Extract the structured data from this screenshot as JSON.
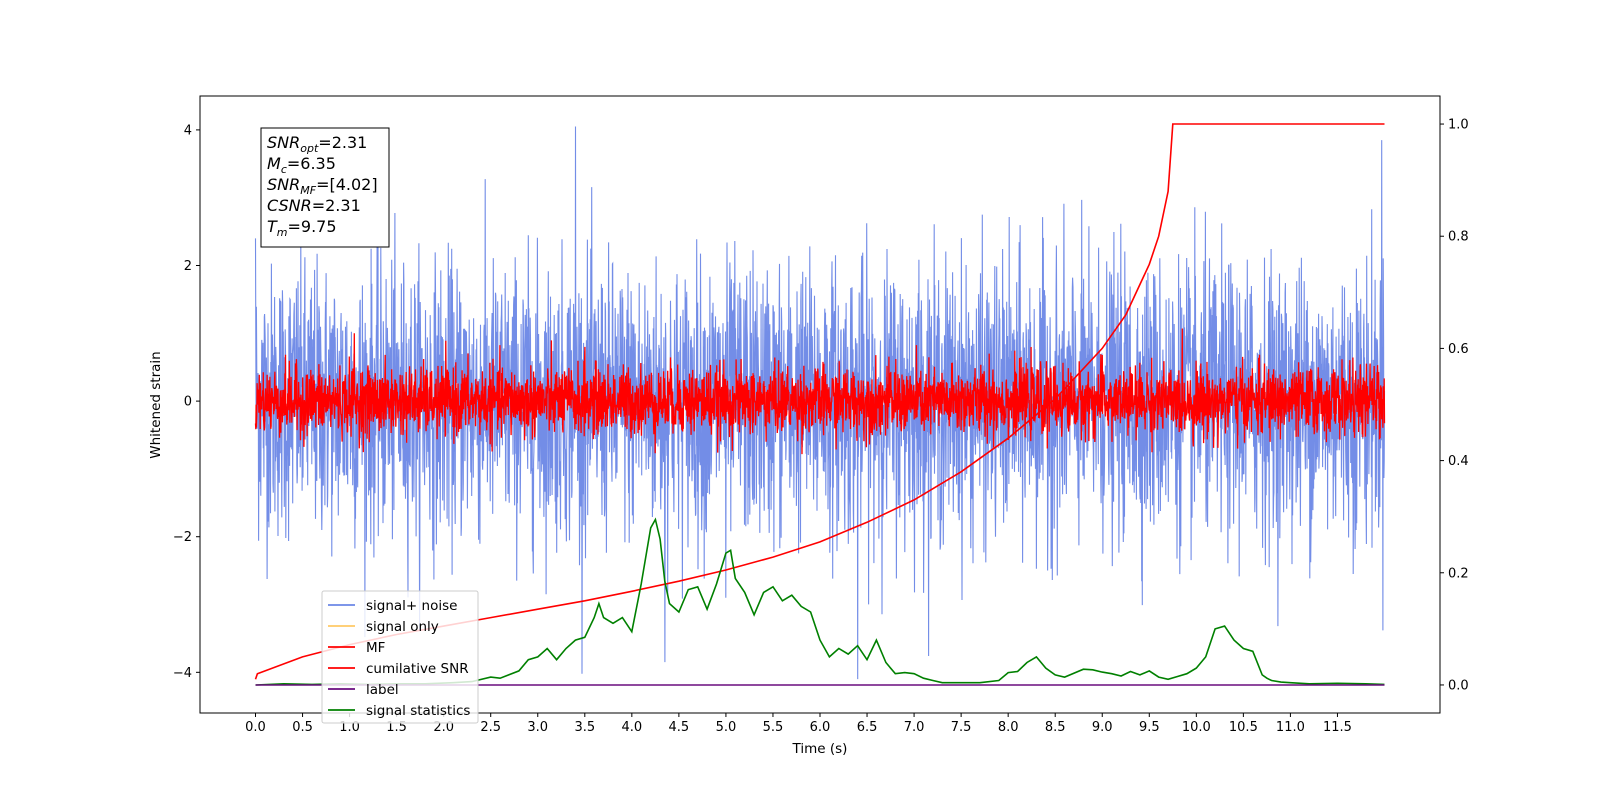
{
  "chart_data": {
    "type": "line",
    "title": "",
    "xlabel": "Time (s)",
    "ylabel": "Whitened strain",
    "xlim": [
      -0.59,
      12.59
    ],
    "ylim": [
      -4.6,
      4.5
    ],
    "y2lim": [
      -0.05,
      1.05
    ],
    "x_ticks": [
      0.0,
      0.5,
      1.0,
      1.5,
      2.0,
      2.5,
      3.0,
      3.5,
      4.0,
      4.5,
      5.0,
      5.5,
      6.0,
      6.5,
      7.0,
      7.5,
      8.0,
      8.5,
      9.0,
      9.5,
      10.0,
      10.5,
      11.0,
      11.5
    ],
    "x_tick_labels": [
      "0.0",
      "0.5",
      "1.0",
      "1.5",
      "2.0",
      "2.5",
      "3.0",
      "3.5",
      "4.0",
      "4.5",
      "5.0",
      "5.5",
      "6.0",
      "6.5",
      "7.0",
      "7.5",
      "8.0",
      "8.5",
      "9.0",
      "9.5",
      "10.0",
      "10.5",
      "11.0",
      "11.5"
    ],
    "y_ticks": [
      -4,
      -2,
      0,
      2,
      4
    ],
    "y_tick_labels": [
      "−4",
      "−2",
      "0",
      "2",
      "4"
    ],
    "y2_ticks": [
      0.0,
      0.2,
      0.4,
      0.6,
      0.8,
      1.0
    ],
    "y2_tick_labels": [
      "0.0",
      "0.2",
      "0.4",
      "0.6",
      "0.8",
      "1.0"
    ],
    "grid": false,
    "legend": {
      "placement": "lower-left",
      "entries": [
        {
          "label": "signal+ noise",
          "color": "#6b87e6"
        },
        {
          "label": "signal only",
          "color": "#ffc966"
        },
        {
          "label": "MF",
          "color": "#ff0000"
        },
        {
          "label": "cumilative SNR",
          "color": "#ff0000"
        },
        {
          "label": "label",
          "color": "#6a0d7f"
        },
        {
          "label": "signal statistics",
          "color": "#008000"
        }
      ]
    },
    "info_box": {
      "lines": [
        {
          "main": "SNR",
          "sub": "opt",
          "value": "=2.31"
        },
        {
          "main": "M",
          "sub": "c",
          "value": "=6.35"
        },
        {
          "main": "SNR",
          "sub": "MF",
          "value": "=[4.02]"
        },
        {
          "main": "CSNR",
          "sub": "",
          "value": "=2.31"
        },
        {
          "main": "T",
          "sub": "m",
          "value": "=9.75"
        }
      ]
    },
    "series": [
      {
        "name": "signal+ noise",
        "axis": "left",
        "style": "noise",
        "color": "#6b87e6",
        "x_range": [
          0.0,
          12.0
        ],
        "amplitude_std": 1.0,
        "peaks": [
          [
            0.0,
            2.4
          ],
          [
            3.4,
            4.05
          ],
          [
            5.0,
            -2.9
          ],
          [
            6.4,
            -4.1
          ],
          [
            4.35,
            -3.85
          ],
          [
            11.97,
            3.85
          ]
        ]
      },
      {
        "name": "MF",
        "axis": "left",
        "style": "noise",
        "color": "#ff0000",
        "x_range": [
          0.0,
          12.0
        ],
        "amplitude_std": 0.25,
        "peaks": [
          [
            1.05,
            1.0
          ],
          [
            3.5,
            0.8
          ],
          [
            7.8,
            0.7
          ]
        ]
      },
      {
        "name": "cumilative SNR",
        "axis": "right",
        "color": "#ff0000",
        "x": [
          0.0,
          0.02,
          0.5,
          1.0,
          1.5,
          2.0,
          2.5,
          3.0,
          3.5,
          4.0,
          4.5,
          5.0,
          5.5,
          6.0,
          6.5,
          7.0,
          7.5,
          8.0,
          8.5,
          9.0,
          9.25,
          9.5,
          9.6,
          9.7,
          9.75,
          10.0,
          11.0,
          12.0
        ],
        "y": [
          0.01,
          0.02,
          0.05,
          0.072,
          0.09,
          0.105,
          0.12,
          0.135,
          0.15,
          0.167,
          0.185,
          0.205,
          0.228,
          0.255,
          0.29,
          0.33,
          0.38,
          0.44,
          0.51,
          0.6,
          0.66,
          0.75,
          0.8,
          0.88,
          1.0,
          1.0,
          1.0,
          1.0
        ]
      },
      {
        "name": "signal statistics",
        "axis": "right",
        "color": "#008000",
        "x": [
          0.0,
          0.3,
          0.6,
          0.9,
          1.2,
          1.5,
          1.8,
          2.1,
          2.3,
          2.5,
          2.6,
          2.8,
          2.9,
          3.0,
          3.1,
          3.2,
          3.3,
          3.4,
          3.5,
          3.6,
          3.65,
          3.7,
          3.8,
          3.9,
          4.0,
          4.1,
          4.2,
          4.25,
          4.3,
          4.35,
          4.4,
          4.5,
          4.6,
          4.7,
          4.8,
          4.9,
          5.0,
          5.05,
          5.1,
          5.2,
          5.3,
          5.4,
          5.5,
          5.6,
          5.7,
          5.8,
          5.9,
          6.0,
          6.1,
          6.2,
          6.3,
          6.4,
          6.5,
          6.6,
          6.7,
          6.8,
          6.9,
          7.0,
          7.1,
          7.2,
          7.3,
          7.5,
          7.7,
          7.9,
          8.0,
          8.1,
          8.2,
          8.3,
          8.4,
          8.5,
          8.6,
          8.8,
          8.9,
          9.0,
          9.1,
          9.2,
          9.3,
          9.4,
          9.5,
          9.6,
          9.7,
          9.8,
          9.9,
          10.0,
          10.1,
          10.2,
          10.3,
          10.4,
          10.5,
          10.6,
          10.7,
          10.75,
          10.8,
          10.9,
          11.0,
          11.2,
          11.5,
          11.8,
          12.0
        ],
        "y": [
          0.0,
          0.002,
          0.001,
          0.002,
          0.001,
          0.002,
          0.002,
          0.004,
          0.006,
          0.014,
          0.012,
          0.025,
          0.045,
          0.05,
          0.065,
          0.045,
          0.065,
          0.08,
          0.085,
          0.12,
          0.145,
          0.12,
          0.11,
          0.12,
          0.095,
          0.18,
          0.28,
          0.295,
          0.26,
          0.185,
          0.145,
          0.13,
          0.17,
          0.175,
          0.135,
          0.18,
          0.235,
          0.24,
          0.19,
          0.165,
          0.125,
          0.165,
          0.175,
          0.15,
          0.16,
          0.14,
          0.13,
          0.08,
          0.05,
          0.065,
          0.055,
          0.07,
          0.045,
          0.08,
          0.04,
          0.02,
          0.022,
          0.02,
          0.012,
          0.008,
          0.004,
          0.004,
          0.004,
          0.008,
          0.022,
          0.024,
          0.04,
          0.05,
          0.03,
          0.018,
          0.014,
          0.028,
          0.027,
          0.023,
          0.02,
          0.016,
          0.024,
          0.018,
          0.025,
          0.014,
          0.01,
          0.015,
          0.02,
          0.03,
          0.05,
          0.1,
          0.105,
          0.08,
          0.065,
          0.06,
          0.018,
          0.012,
          0.008,
          0.005,
          0.004,
          0.002,
          0.003,
          0.002,
          0.001
        ]
      },
      {
        "name": "label",
        "axis": "right",
        "color": "#6a0d7f",
        "x": [
          0.0,
          12.0
        ],
        "y": [
          0.0,
          0.0
        ]
      },
      {
        "name": "signal only",
        "axis": "left",
        "color": "#ffc966",
        "x": [
          0.0,
          12.0
        ],
        "y": [
          0.0,
          0.0
        ],
        "visible": false
      }
    ]
  }
}
